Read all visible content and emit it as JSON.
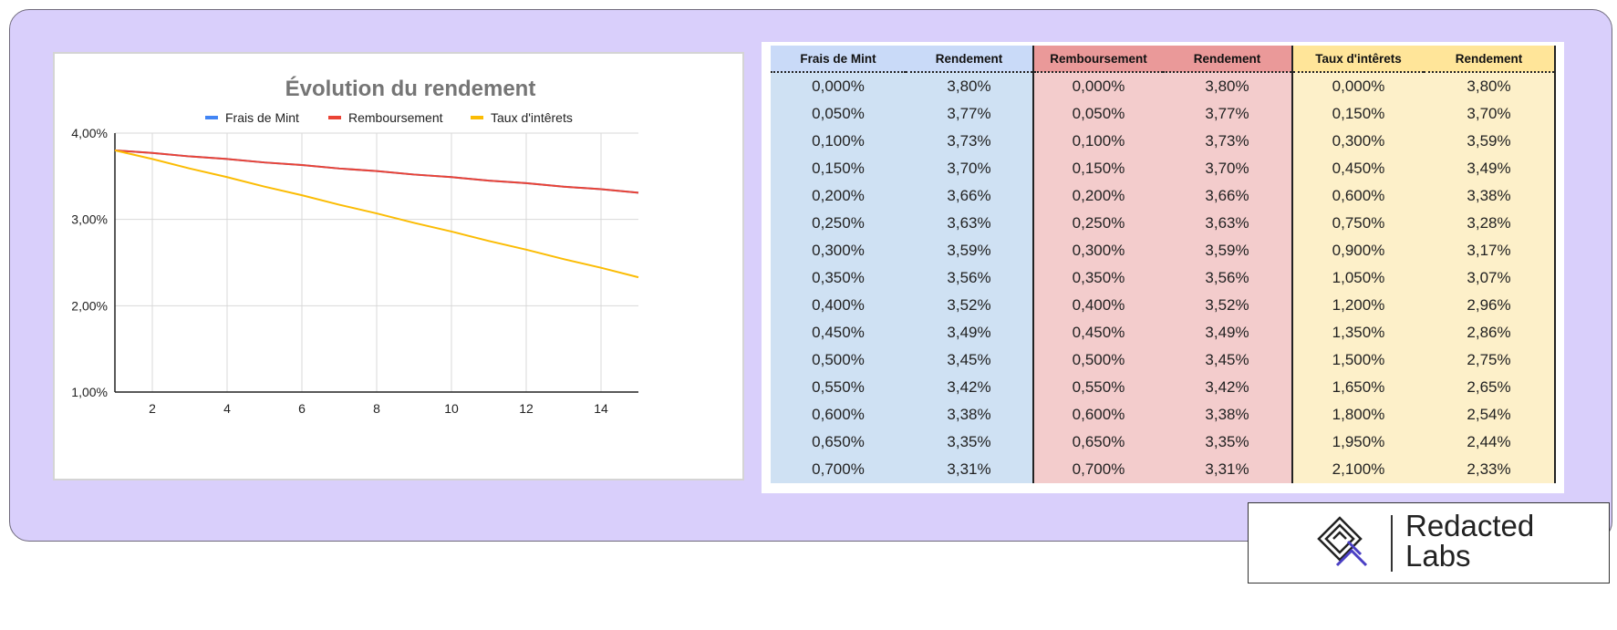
{
  "chart_data": {
    "type": "line",
    "title": "Évolution du rendement",
    "x": [
      1,
      2,
      3,
      4,
      5,
      6,
      7,
      8,
      9,
      10,
      11,
      12,
      13,
      14,
      15
    ],
    "series": [
      {
        "name": "Frais de Mint",
        "color": "#4285f4",
        "values": [
          3.8,
          3.77,
          3.73,
          3.7,
          3.66,
          3.63,
          3.59,
          3.56,
          3.52,
          3.49,
          3.45,
          3.42,
          3.38,
          3.35,
          3.31
        ]
      },
      {
        "name": "Remboursement",
        "color": "#ea4335",
        "values": [
          3.8,
          3.77,
          3.73,
          3.7,
          3.66,
          3.63,
          3.59,
          3.56,
          3.52,
          3.49,
          3.45,
          3.42,
          3.38,
          3.35,
          3.31
        ]
      },
      {
        "name": "Taux d'intêrets",
        "color": "#fbbc04",
        "values": [
          3.8,
          3.7,
          3.59,
          3.49,
          3.38,
          3.28,
          3.17,
          3.07,
          2.96,
          2.86,
          2.75,
          2.65,
          2.54,
          2.44,
          2.33
        ]
      }
    ],
    "xticks": [
      "2",
      "4",
      "6",
      "8",
      "10",
      "12",
      "14"
    ],
    "yticks": [
      "4,00%",
      "3,00%",
      "2,00%",
      "1,00%"
    ],
    "xlim": [
      1,
      15
    ],
    "ylim": [
      1,
      4
    ],
    "xlabel": "",
    "ylabel": "",
    "legend_position": "top",
    "grid": true
  },
  "table": {
    "headers": [
      "Frais de Mint",
      "Rendement",
      "Remboursement",
      "Rendement",
      "Taux d'intêrets",
      "Rendement"
    ],
    "rows": [
      [
        "0,000%",
        "3,80%",
        "0,000%",
        "3,80%",
        "0,000%",
        "3,80%"
      ],
      [
        "0,050%",
        "3,77%",
        "0,050%",
        "3,77%",
        "0,150%",
        "3,70%"
      ],
      [
        "0,100%",
        "3,73%",
        "0,100%",
        "3,73%",
        "0,300%",
        "3,59%"
      ],
      [
        "0,150%",
        "3,70%",
        "0,150%",
        "3,70%",
        "0,450%",
        "3,49%"
      ],
      [
        "0,200%",
        "3,66%",
        "0,200%",
        "3,66%",
        "0,600%",
        "3,38%"
      ],
      [
        "0,250%",
        "3,63%",
        "0,250%",
        "3,63%",
        "0,750%",
        "3,28%"
      ],
      [
        "0,300%",
        "3,59%",
        "0,300%",
        "3,59%",
        "0,900%",
        "3,17%"
      ],
      [
        "0,350%",
        "3,56%",
        "0,350%",
        "3,56%",
        "1,050%",
        "3,07%"
      ],
      [
        "0,400%",
        "3,52%",
        "0,400%",
        "3,52%",
        "1,200%",
        "2,96%"
      ],
      [
        "0,450%",
        "3,49%",
        "0,450%",
        "3,49%",
        "1,350%",
        "2,86%"
      ],
      [
        "0,500%",
        "3,45%",
        "0,500%",
        "3,45%",
        "1,500%",
        "2,75%"
      ],
      [
        "0,550%",
        "3,42%",
        "0,550%",
        "3,42%",
        "1,650%",
        "2,65%"
      ],
      [
        "0,600%",
        "3,38%",
        "0,600%",
        "3,38%",
        "1,800%",
        "2,54%"
      ],
      [
        "0,650%",
        "3,35%",
        "0,650%",
        "3,35%",
        "1,950%",
        "2,44%"
      ],
      [
        "0,700%",
        "3,31%",
        "0,700%",
        "3,31%",
        "2,100%",
        "2,33%"
      ]
    ]
  },
  "colors": {
    "panel_background": "#d9cffb",
    "blue_cell": "#cfe1f3",
    "red_cell": "#f3cccc",
    "yellow_cell": "#fdf0c9",
    "logo_accent": "#4a3fc4"
  },
  "logo": {
    "line1": "Redacted",
    "line2": "Labs",
    "icon": "diamond-logo-icon"
  }
}
